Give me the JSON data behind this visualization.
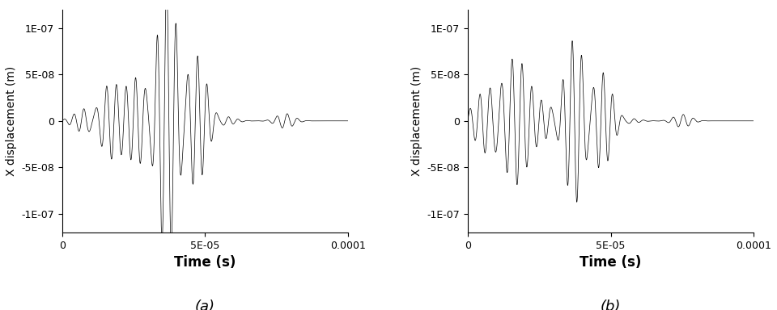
{
  "xlim": [
    0,
    0.0001
  ],
  "ylim": [
    -1.2e-07,
    1.2e-07
  ],
  "xlabel": "Time (s)",
  "ylabel": "X displacement (m)",
  "label_a": "(a)",
  "label_b": "(b)",
  "xticks": [
    0,
    5e-05,
    0.0001
  ],
  "xtick_labels": [
    "0",
    "5E-05",
    "0.0001"
  ],
  "yticks": [
    -1e-07,
    -5e-08,
    0,
    5e-08,
    1e-07
  ],
  "ytick_labels": [
    "-1E-07",
    "-5E-08",
    "0",
    "5E-08",
    "1E-07"
  ],
  "line_color": "#000000",
  "line_width": 0.5,
  "background_color": "#ffffff",
  "xlabel_fontsize": 12,
  "ylabel_fontsize": 10,
  "tick_fontsize": 9,
  "label_fontsize": 13
}
